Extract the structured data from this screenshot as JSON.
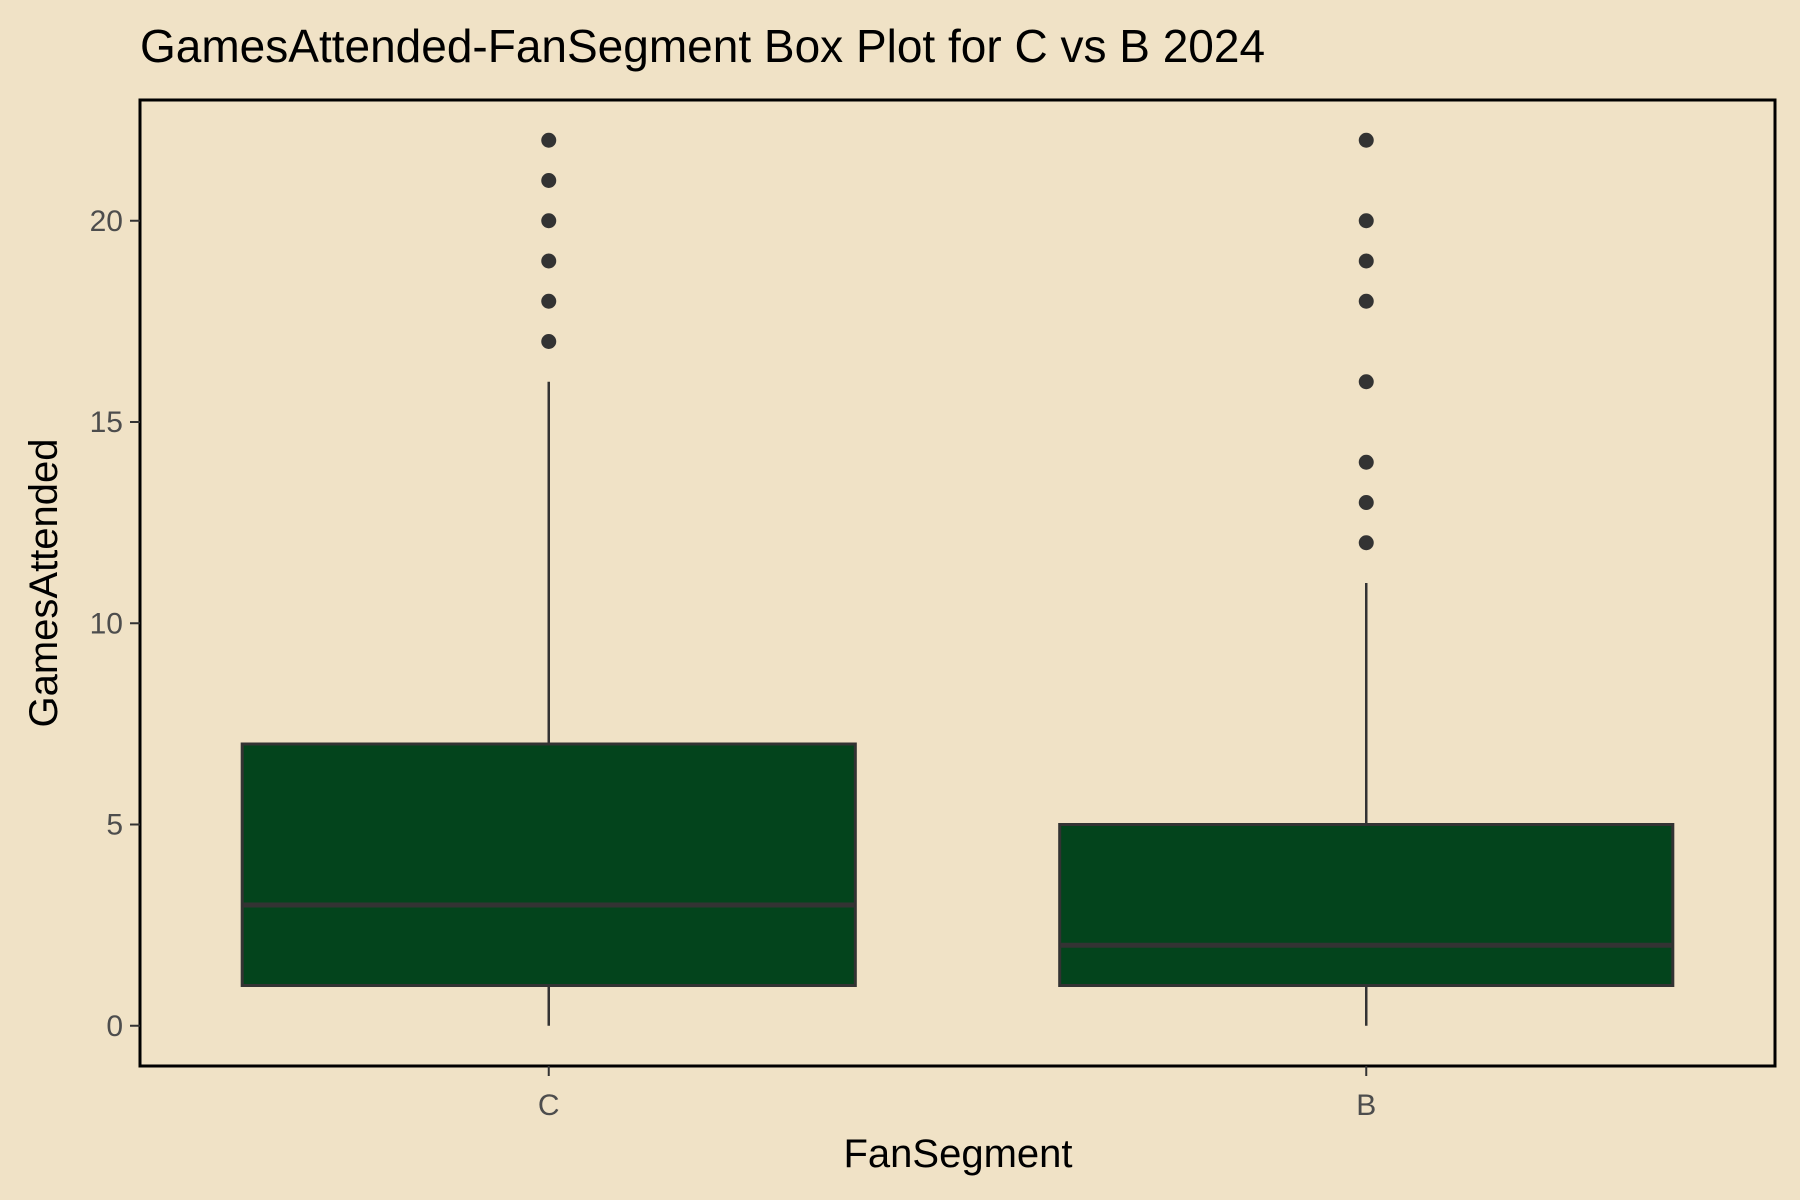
{
  "chart_data": {
    "type": "box",
    "title": "GamesAttended-FanSegment Box Plot for C vs B 2024",
    "xlabel": "FanSegment",
    "ylabel": "GamesAttended",
    "ylim": [
      -1,
      23
    ],
    "yticks": [
      0,
      5,
      10,
      15,
      20
    ],
    "categories": [
      "C",
      "B"
    ],
    "grid": false,
    "legend": "none",
    "box_fill": "#03441C",
    "box_stroke": "#333333",
    "outlier_color": "#333333",
    "background": "#F0E2C6",
    "boxes": [
      {
        "name": "C",
        "min": 0,
        "q1": 1,
        "median": 3,
        "q3": 7,
        "max": 16,
        "outliers": [
          17,
          18,
          19,
          20,
          21,
          22
        ]
      },
      {
        "name": "B",
        "min": 0,
        "q1": 1,
        "median": 2,
        "q3": 5,
        "max": 11,
        "outliers": [
          12,
          13,
          14,
          16,
          18,
          19,
          20,
          22
        ]
      }
    ]
  }
}
